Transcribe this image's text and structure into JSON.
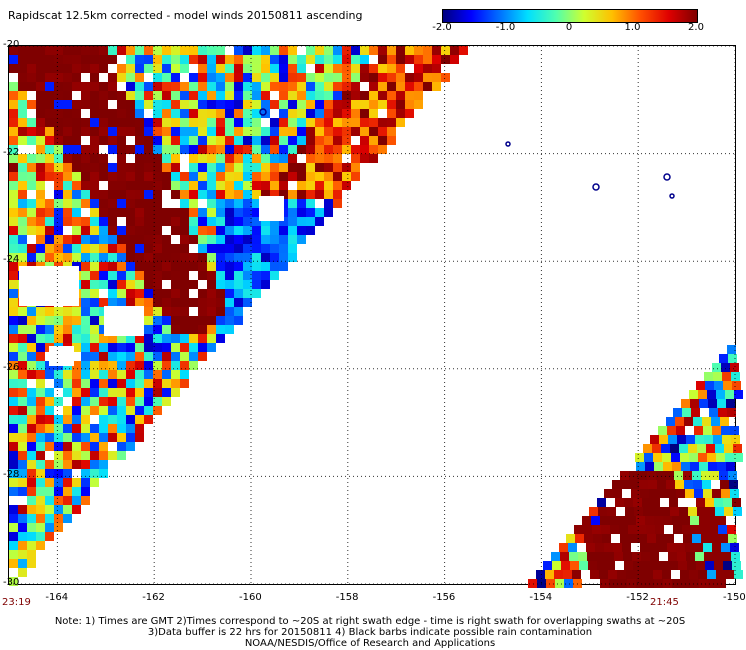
{
  "title": "Rapidscat 12.5km corrected - model winds 20150811 ascending",
  "colorbar": {
    "ticks": [
      "-2.0",
      "-1.0",
      "0",
      "1.0",
      "2.0"
    ],
    "tick_values": [
      -2.0,
      -1.0,
      0,
      1.0,
      2.0
    ]
  },
  "map": {
    "lon_labels": [
      "-164",
      "-162",
      "-160",
      "-158",
      "-156",
      "-154",
      "-152",
      "-150"
    ],
    "lon_values": [
      -164,
      -162,
      -160,
      -158,
      -156,
      -154,
      -152,
      -150
    ],
    "lat_labels": [
      "-20",
      "-22",
      "-24",
      "-26",
      "-28",
      "-30"
    ],
    "lat_values": [
      -20,
      -22,
      -24,
      -26,
      -28,
      -30
    ],
    "lon_range": [
      -165,
      -150
    ],
    "lat_range": [
      -30,
      -20
    ],
    "grid": true
  },
  "times": {
    "left": "23:19",
    "right": "21:45"
  },
  "notes": [
    "Note: 1) Times are GMT 2)Times correspond to ~20S at right swath edge - time is right swath for overlapping swaths at ~20S",
    "3)Data buffer is 22 hrs for 20150811 4) Black barbs indicate possible rain contamination",
    "NOAA/NESDIS/Office of Research and Applications"
  ],
  "colors": {
    "strong_positive": "#7f0000",
    "strong_negative": "#0000ff",
    "time_label": "#7f0000"
  }
}
